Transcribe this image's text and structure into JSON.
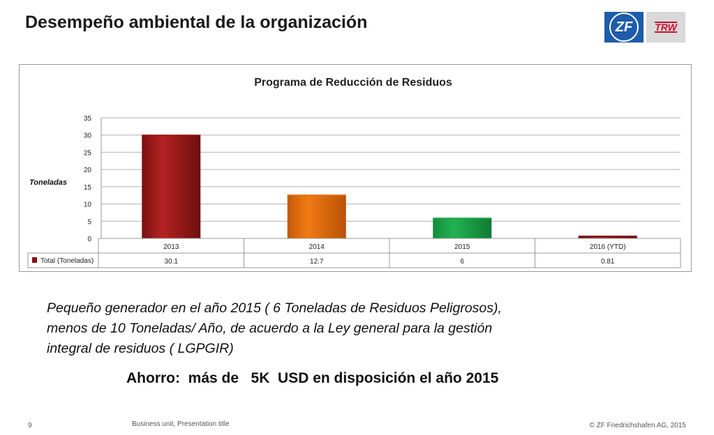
{
  "slide": {
    "title": "Desempeño ambiental de la organización",
    "logos": {
      "zf": "ZF",
      "trw": "TRW"
    }
  },
  "chart_data": {
    "type": "bar",
    "title": "Programa de Reducción de Residuos",
    "ylabel": "Toneladas",
    "xlabel": "",
    "categories": [
      "2013",
      "2014",
      "2015",
      "2016 (YTD)"
    ],
    "series": [
      {
        "name": "Total (Toneladas)",
        "values": [
          30.1,
          12.7,
          6,
          0.81
        ]
      }
    ],
    "table_values": [
      "30.1",
      "12.7",
      "6",
      "0.81"
    ],
    "ylim": [
      0,
      35
    ],
    "yticks": [
      0,
      5,
      10,
      15,
      20,
      25,
      30,
      35
    ],
    "grid": true,
    "legend": "data-table",
    "bar_colors": [
      "#9e1b1b",
      "#e8700f",
      "#1ea34a",
      "#8a1414"
    ],
    "legend_swatch_color": "#8a1414"
  },
  "text": {
    "paragraph_lines": [
      "Pequeño generador en el año 2015 ( 6 Toneladas de Residuos Peligrosos),",
      "menos de 10 Toneladas/ Año, de acuerdo a la Ley general para la gestión",
      "integral de residuos ( LGPGIR)"
    ],
    "savings": "Ahorro:  más de   5K  USD en disposición el año 2015"
  },
  "footer": {
    "page_number": "9",
    "center": "Business unit, Presentation title",
    "copyright": "© ZF Friedrichshafen AG, 2015"
  }
}
